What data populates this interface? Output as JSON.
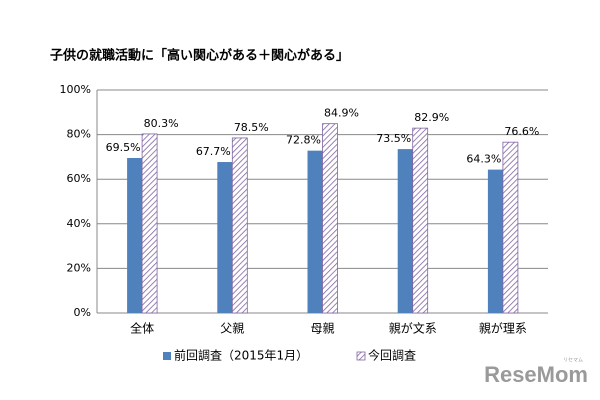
{
  "chart_data": {
    "type": "bar",
    "title": "子供の就職活動に「高い関心がある＋関心がある」",
    "categories": [
      "全体",
      "父親",
      "母親",
      "親が文系",
      "親が理系"
    ],
    "series": [
      {
        "name": "前回調査（2015年1月）",
        "color": "#4f81bd",
        "pattern": "solid",
        "values": [
          69.5,
          67.7,
          72.8,
          73.5,
          64.3
        ],
        "value_labels": [
          "69.5%",
          "67.7%",
          "72.8%",
          "73.5%",
          "64.3%"
        ]
      },
      {
        "name": "今回調査",
        "color": "#8064a2",
        "pattern": "hatch",
        "values": [
          80.3,
          78.5,
          84.9,
          82.9,
          76.6
        ],
        "value_labels": [
          "80.3%",
          "78.5%",
          "84.9%",
          "82.9%",
          "76.6%"
        ]
      }
    ],
    "ylim": [
      0,
      100
    ],
    "yticks": [
      {
        "value": 0,
        "label": "0%"
      },
      {
        "value": 20,
        "label": "20%"
      },
      {
        "value": 40,
        "label": "40%"
      },
      {
        "value": 60,
        "label": "60%"
      },
      {
        "value": 80,
        "label": "80%"
      },
      {
        "value": 100,
        "label": "100%"
      }
    ],
    "grid": true,
    "legend": "bottom",
    "watermark": "ReseMom",
    "watermark_small": "リセマム"
  }
}
